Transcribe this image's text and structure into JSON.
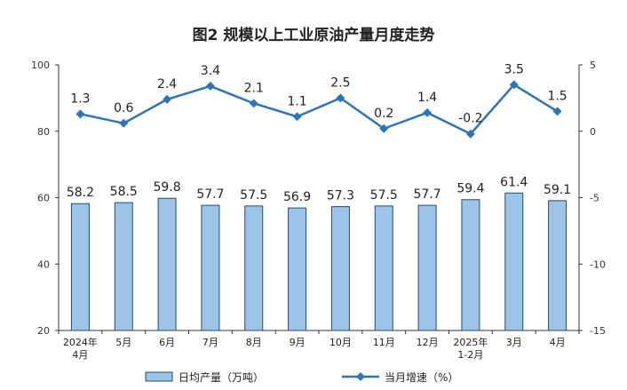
{
  "chart_data": {
    "type": "bar",
    "title": "图2  规模以上工业原油产量月度走势",
    "categories": [
      [
        "2024年",
        "4月"
      ],
      [
        "5月"
      ],
      [
        "6月"
      ],
      [
        "7月"
      ],
      [
        "8月"
      ],
      [
        "9月"
      ],
      [
        "10月"
      ],
      [
        "11月"
      ],
      [
        "12月"
      ],
      [
        "2025年",
        "1-2月"
      ],
      [
        "3月"
      ],
      [
        "4月"
      ]
    ],
    "series": [
      {
        "name": "日均产量（万吨）",
        "type": "bar",
        "axis": "left",
        "color": "#9DC3E6",
        "edge_color": "#1F4E79",
        "values": [
          58.2,
          58.5,
          59.8,
          57.7,
          57.5,
          56.9,
          57.3,
          57.5,
          57.7,
          59.4,
          61.4,
          59.1
        ],
        "labels": [
          "58.2",
          "58.5",
          "59.8",
          "57.7",
          "57.5",
          "56.9",
          "57.3",
          "57.5",
          "57.7",
          "59.4",
          "61.4",
          "59.1"
        ]
      },
      {
        "name": "当月增速（%）",
        "type": "line",
        "axis": "right",
        "color": "#2E75B6",
        "marker": "diamond",
        "values": [
          1.3,
          0.6,
          2.4,
          3.4,
          2.1,
          1.1,
          2.5,
          0.2,
          1.4,
          -0.2,
          3.5,
          1.5
        ],
        "labels": [
          "1.3",
          "0.6",
          "2.4",
          "3.4",
          "2.1",
          "1.1",
          "2.5",
          "0.2",
          "1.4",
          "-0.2",
          "3.5",
          "1.5"
        ]
      }
    ],
    "left_axis": {
      "ylim": [
        20,
        100
      ],
      "ticks": [
        "100",
        "80",
        "60",
        "40",
        "20"
      ]
    },
    "right_axis": {
      "ylim": [
        -15,
        5
      ],
      "ticks": [
        "5",
        "0",
        "-5",
        "-10",
        "-15"
      ]
    },
    "grid": false,
    "legend_position": "bottom"
  }
}
